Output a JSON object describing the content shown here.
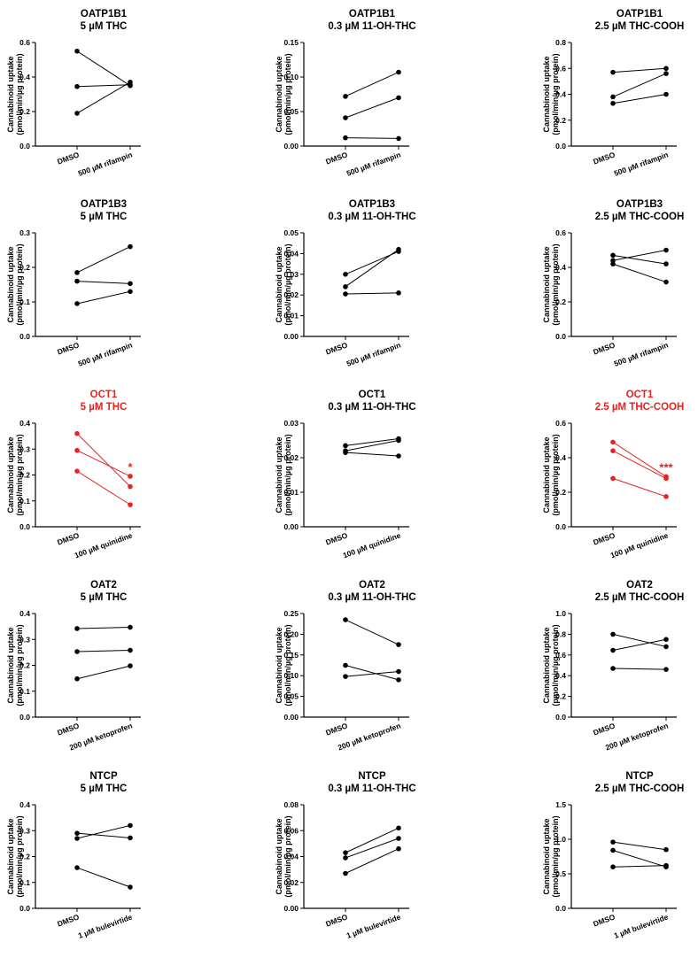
{
  "colors": {
    "default": "#000000",
    "significant": "#e8231f"
  },
  "ylabel_line1": "Cannabinoid uptake",
  "ylabel_line2": "(pmol/min/µg protein)",
  "chart_data": [
    {
      "type": "line",
      "title": "OATP1B1",
      "subtitle": "5 µM THC",
      "categories": [
        "DMSO",
        "500 µM rifampin"
      ],
      "ylim": [
        0,
        0.6
      ],
      "yticks": [
        "0.0",
        "0.2",
        "0.4",
        "0.6"
      ],
      "highlight": false,
      "significance": "",
      "series": [
        {
          "values": [
            0.55,
            0.35
          ]
        },
        {
          "values": [
            0.345,
            0.355
          ]
        },
        {
          "values": [
            0.19,
            0.37
          ]
        }
      ]
    },
    {
      "type": "line",
      "title": "OATP1B1",
      "subtitle": "0.3 µM 11-OH-THC",
      "categories": [
        "DMSO",
        "500 µM rifampin"
      ],
      "ylim": [
        0,
        0.15
      ],
      "yticks": [
        "0.00",
        "0.05",
        "0.10",
        "0.15"
      ],
      "highlight": false,
      "significance": "",
      "series": [
        {
          "values": [
            0.072,
            0.107
          ]
        },
        {
          "values": [
            0.041,
            0.07
          ]
        },
        {
          "values": [
            0.012,
            0.011
          ]
        }
      ]
    },
    {
      "type": "line",
      "title": "OATP1B1",
      "subtitle": "2.5 µM THC-COOH",
      "categories": [
        "DMSO",
        "500 µM rifampin"
      ],
      "ylim": [
        0,
        0.8
      ],
      "yticks": [
        "0.0",
        "0.2",
        "0.4",
        "0.6",
        "0.8"
      ],
      "highlight": false,
      "significance": "",
      "series": [
        {
          "values": [
            0.57,
            0.6
          ]
        },
        {
          "values": [
            0.38,
            0.56
          ]
        },
        {
          "values": [
            0.33,
            0.4
          ]
        }
      ]
    },
    {
      "type": "line",
      "title": "OATP1B3",
      "subtitle": "5 µM THC",
      "categories": [
        "DMSO",
        "500 µM rifampin"
      ],
      "ylim": [
        0,
        0.3
      ],
      "yticks": [
        "0.0",
        "0.1",
        "0.2",
        "0.3"
      ],
      "highlight": false,
      "significance": "",
      "series": [
        {
          "values": [
            0.185,
            0.26
          ]
        },
        {
          "values": [
            0.16,
            0.153
          ]
        },
        {
          "values": [
            0.095,
            0.13
          ]
        }
      ]
    },
    {
      "type": "line",
      "title": "OATP1B3",
      "subtitle": "0.3 µM 11-OH-THC",
      "categories": [
        "DMSO",
        "500 µM rifampin"
      ],
      "ylim": [
        0,
        0.05
      ],
      "yticks": [
        "0.00",
        "0.01",
        "0.02",
        "0.03",
        "0.04",
        "0.05"
      ],
      "highlight": false,
      "significance": "",
      "series": [
        {
          "values": [
            0.03,
            0.041
          ]
        },
        {
          "values": [
            0.024,
            0.042
          ]
        },
        {
          "values": [
            0.0205,
            0.021
          ]
        }
      ]
    },
    {
      "type": "line",
      "title": "OATP1B3",
      "subtitle": "2.5 µM THC-COOH",
      "categories": [
        "DMSO",
        "500 µM rifampin"
      ],
      "ylim": [
        0,
        0.6
      ],
      "yticks": [
        "0.0",
        "0.2",
        "0.4",
        "0.6"
      ],
      "highlight": false,
      "significance": "",
      "series": [
        {
          "values": [
            0.47,
            0.42
          ]
        },
        {
          "values": [
            0.44,
            0.5
          ]
        },
        {
          "values": [
            0.42,
            0.315
          ]
        }
      ]
    },
    {
      "type": "line",
      "title": "OCT1",
      "subtitle": "5 µM THC",
      "categories": [
        "DMSO",
        "100 µM quinidine"
      ],
      "ylim": [
        0,
        0.4
      ],
      "yticks": [
        "0.0",
        "0.1",
        "0.2",
        "0.3",
        "0.4"
      ],
      "highlight": true,
      "significance": "*",
      "series": [
        {
          "values": [
            0.36,
            0.155
          ]
        },
        {
          "values": [
            0.295,
            0.195
          ]
        },
        {
          "values": [
            0.215,
            0.085
          ]
        }
      ]
    },
    {
      "type": "line",
      "title": "OCT1",
      "subtitle": "0.3 µM 11-OH-THC",
      "categories": [
        "DMSO",
        "100 µM quinidine"
      ],
      "ylim": [
        0,
        0.03
      ],
      "yticks": [
        "0.00",
        "0.01",
        "0.02",
        "0.03"
      ],
      "highlight": false,
      "significance": "",
      "series": [
        {
          "values": [
            0.0235,
            0.0255
          ]
        },
        {
          "values": [
            0.022,
            0.025
          ]
        },
        {
          "values": [
            0.0215,
            0.0205
          ]
        }
      ]
    },
    {
      "type": "line",
      "title": "OCT1",
      "subtitle": "2.5 µM THC-COOH",
      "categories": [
        "DMSO",
        "100 µM quinidine"
      ],
      "ylim": [
        0,
        0.6
      ],
      "yticks": [
        "0.0",
        "0.2",
        "0.4",
        "0.6"
      ],
      "highlight": true,
      "significance": "***",
      "series": [
        {
          "values": [
            0.49,
            0.29
          ]
        },
        {
          "values": [
            0.44,
            0.28
          ]
        },
        {
          "values": [
            0.28,
            0.175
          ]
        }
      ]
    },
    {
      "type": "line",
      "title": "OAT2",
      "subtitle": "5 µM THC",
      "categories": [
        "DMSO",
        "200 µM ketoprofen"
      ],
      "ylim": [
        0,
        0.4
      ],
      "yticks": [
        "0.0",
        "0.1",
        "0.2",
        "0.3",
        "0.4"
      ],
      "highlight": false,
      "significance": "",
      "series": [
        {
          "values": [
            0.342,
            0.347
          ]
        },
        {
          "values": [
            0.253,
            0.258
          ]
        },
        {
          "values": [
            0.148,
            0.198
          ]
        }
      ]
    },
    {
      "type": "line",
      "title": "OAT2",
      "subtitle": "0.3 µM 11-OH-THC",
      "categories": [
        "DMSO",
        "200 µM ketoprofen"
      ],
      "ylim": [
        0,
        0.25
      ],
      "yticks": [
        "0.00",
        "0.05",
        "0.10",
        "0.15",
        "0.20",
        "0.25"
      ],
      "highlight": false,
      "significance": "",
      "series": [
        {
          "values": [
            0.235,
            0.175
          ]
        },
        {
          "values": [
            0.125,
            0.09
          ]
        },
        {
          "values": [
            0.098,
            0.11
          ]
        }
      ]
    },
    {
      "type": "line",
      "title": "OAT2",
      "subtitle": "2.5 µM THC-COOH",
      "categories": [
        "DMSO",
        "200 µM ketoprofen"
      ],
      "ylim": [
        0,
        1.0
      ],
      "yticks": [
        "0.0",
        "0.2",
        "0.4",
        "0.6",
        "0.8",
        "1.0"
      ],
      "highlight": false,
      "significance": "",
      "series": [
        {
          "values": [
            0.8,
            0.68
          ]
        },
        {
          "values": [
            0.645,
            0.75
          ]
        },
        {
          "values": [
            0.47,
            0.46
          ]
        }
      ]
    },
    {
      "type": "line",
      "title": "NTCP",
      "subtitle": "5 µM THC",
      "categories": [
        "DMSO",
        "1 µM bulevirtide"
      ],
      "ylim": [
        0,
        0.4
      ],
      "yticks": [
        "0.0",
        "0.1",
        "0.2",
        "0.3",
        "0.4"
      ],
      "highlight": false,
      "significance": "",
      "series": [
        {
          "values": [
            0.29,
            0.272
          ]
        },
        {
          "values": [
            0.27,
            0.32
          ]
        },
        {
          "values": [
            0.157,
            0.082
          ]
        }
      ]
    },
    {
      "type": "line",
      "title": "NTCP",
      "subtitle": "0.3 µM 11-OH-THC",
      "categories": [
        "DMSO",
        "1 µM bulevirtide"
      ],
      "ylim": [
        0,
        0.08
      ],
      "yticks": [
        "0.00",
        "0.02",
        "0.04",
        "0.06",
        "0.08"
      ],
      "highlight": false,
      "significance": "",
      "series": [
        {
          "values": [
            0.043,
            0.062
          ]
        },
        {
          "values": [
            0.039,
            0.054
          ]
        },
        {
          "values": [
            0.027,
            0.046
          ]
        }
      ]
    },
    {
      "type": "line",
      "title": "NTCP",
      "subtitle": "2.5 µM THC-COOH",
      "categories": [
        "DMSO",
        "1 µM bulevirtide"
      ],
      "ylim": [
        0,
        1.5
      ],
      "yticks": [
        "0.0",
        "0.5",
        "1.0",
        "1.5"
      ],
      "highlight": false,
      "significance": "",
      "series": [
        {
          "values": [
            0.96,
            0.85
          ]
        },
        {
          "values": [
            0.84,
            0.6
          ]
        },
        {
          "values": [
            0.6,
            0.62
          ]
        }
      ]
    }
  ]
}
